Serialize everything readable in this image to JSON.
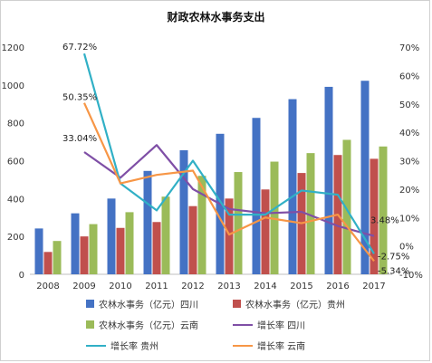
{
  "chart_data": {
    "type": "bar",
    "title": "财政农林水事务支出",
    "categories": [
      "2008",
      "2009",
      "2010",
      "2011",
      "2012",
      "2013",
      "2014",
      "2015",
      "2016",
      "2017"
    ],
    "y_left": {
      "ylim": [
        0,
        1200
      ],
      "ticks": [
        0,
        200,
        400,
        600,
        800,
        1000,
        1200
      ]
    },
    "y_right": {
      "ylim": [
        -10,
        70
      ],
      "ticks": [
        "-10%",
        "0%",
        "10%",
        "20%",
        "30%",
        "40%",
        "50%",
        "60%",
        "70%"
      ]
    },
    "bar_series": [
      {
        "name": "农林水事务（亿元）四川",
        "color": "#4472C4",
        "values": [
          242,
          322,
          400,
          546,
          655,
          742,
          826,
          925,
          990,
          1022
        ]
      },
      {
        "name": "农林水事务（亿元）贵州",
        "color": "#C0504D",
        "values": [
          118,
          200,
          245,
          276,
          360,
          400,
          448,
          535,
          630,
          610
        ]
      },
      {
        "name": "农林水事务（亿元）云南",
        "color": "#9BBB59",
        "values": [
          176,
          265,
          328,
          410,
          520,
          540,
          595,
          640,
          710,
          675
        ]
      }
    ],
    "line_series": [
      {
        "name": "增长率 四川",
        "color": "#7F4FA6",
        "values": [
          null,
          33.04,
          24.0,
          35.5,
          20.0,
          13.0,
          11.5,
          12.0,
          7.0,
          3.48
        ]
      },
      {
        "name": "增长率 贵州",
        "color": "#31B0C6",
        "values": [
          null,
          67.72,
          22.0,
          12.5,
          30.0,
          11.0,
          11.0,
          19.5,
          18.0,
          -2.75
        ]
      },
      {
        "name": "增长率 云南",
        "color": "#F79646",
        "values": [
          null,
          50.35,
          22.0,
          25.0,
          26.5,
          4.0,
          10.0,
          8.0,
          11.0,
          -5.34
        ]
      }
    ],
    "data_labels": [
      {
        "text": "67.72%",
        "series": 1,
        "index": 1
      },
      {
        "text": "50.35%",
        "series": 2,
        "index": 1
      },
      {
        "text": "33.04%",
        "series": 0,
        "index": 1
      },
      {
        "text": "3.48%",
        "series": 0,
        "index": 9
      },
      {
        "text": "-2.75%",
        "series": 1,
        "index": 9
      },
      {
        "text": "-5.34%",
        "series": 2,
        "index": 9
      }
    ],
    "grid": false,
    "legend_position": "bottom"
  }
}
